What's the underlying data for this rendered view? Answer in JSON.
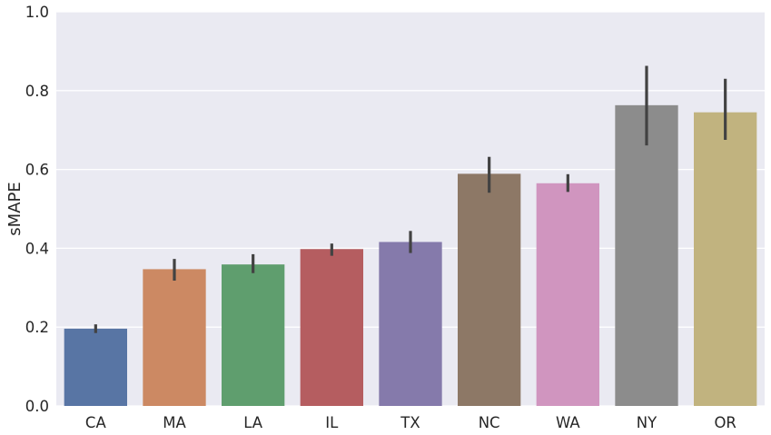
{
  "chart_data": {
    "type": "bar",
    "title": "",
    "xlabel": "",
    "ylabel": "sMAPE",
    "ylim": [
      0,
      1.0
    ],
    "yticks": [
      "0.0",
      "0.2",
      "0.4",
      "0.6",
      "0.8",
      "1.0"
    ],
    "grid": true,
    "categories": [
      "CA",
      "MA",
      "LA",
      "IL",
      "TX",
      "NC",
      "WA",
      "NY",
      "OR"
    ],
    "values": [
      0.196,
      0.347,
      0.359,
      0.398,
      0.416,
      0.589,
      0.565,
      0.763,
      0.745
    ],
    "error_low": [
      0.185,
      0.318,
      0.337,
      0.381,
      0.388,
      0.541,
      0.543,
      0.661,
      0.675
    ],
    "error_high": [
      0.207,
      0.373,
      0.385,
      0.412,
      0.444,
      0.632,
      0.588,
      0.863,
      0.83
    ],
    "colors": [
      "#5875a4",
      "#cc8963",
      "#5f9e6e",
      "#b55d60",
      "#857aab",
      "#8d7866",
      "#d095bf",
      "#8c8c8c",
      "#c1b37f"
    ],
    "background_color": "#eaeaf2",
    "grid_color": "#ffffff",
    "errorbar_color": "#424242"
  }
}
